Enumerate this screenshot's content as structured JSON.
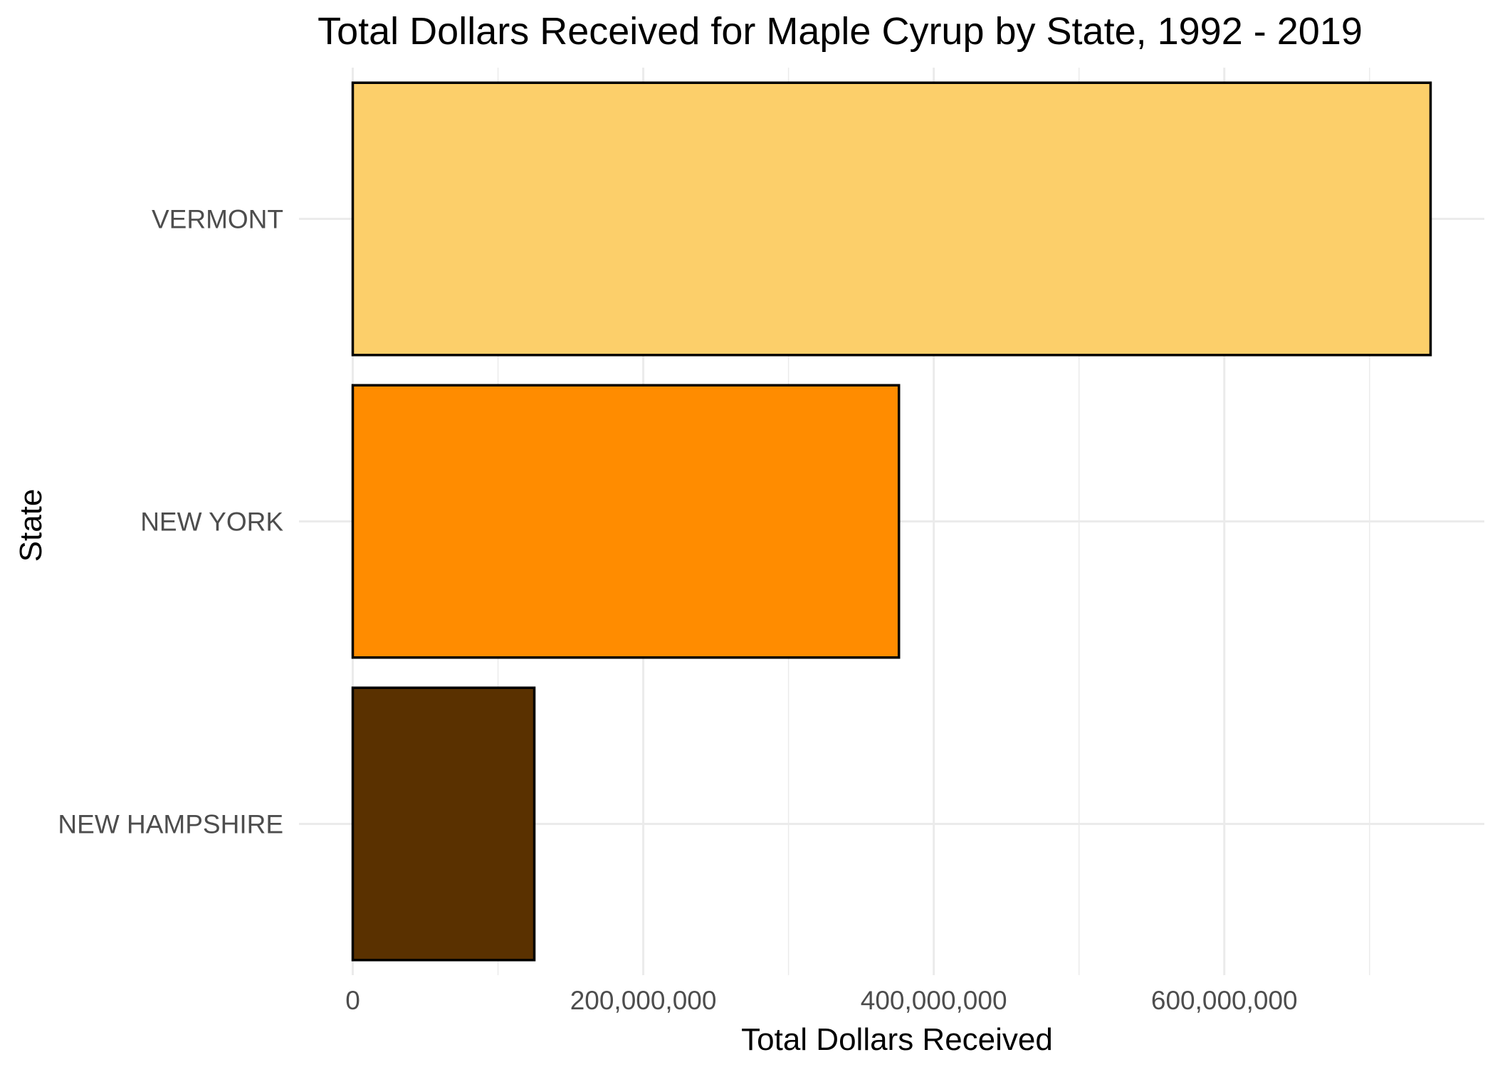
{
  "chart_data": {
    "type": "bar",
    "orientation": "horizontal",
    "title": "Total Dollars Received for Maple Cyrup by State, 1992 - 2019",
    "xlabel": "Total Dollars Received",
    "ylabel": "State",
    "categories": [
      "VERMONT",
      "NEW YORK",
      "NEW HAMPSHIRE"
    ],
    "values": [
      742000000,
      376000000,
      125000000
    ],
    "colors": [
      "#FCCF6A",
      "#FF8C00",
      "#5A3100"
    ],
    "bar_outline": "#000000",
    "xlim": [
      -37000000,
      779000000
    ],
    "x_ticks": [
      0,
      200000000,
      400000000,
      600000000
    ],
    "x_tick_labels": [
      "0",
      "200,000,000",
      "400,000,000",
      "600,000,000"
    ],
    "grid": true,
    "legend": "none"
  }
}
